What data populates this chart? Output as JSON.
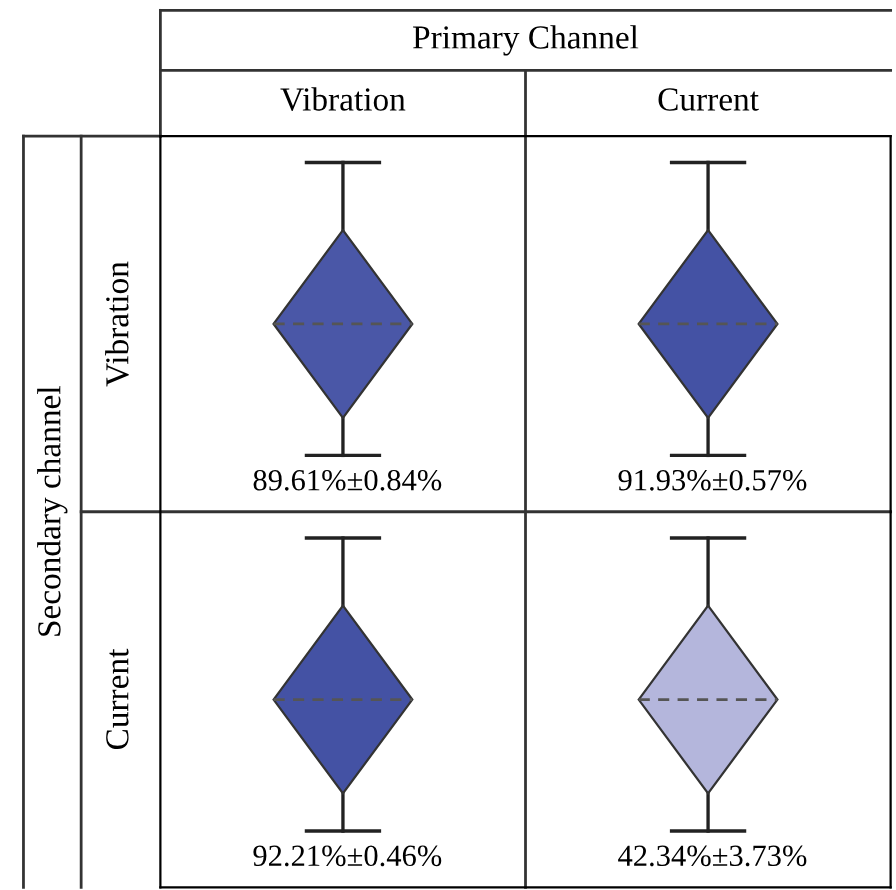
{
  "chart_data": {
    "type": "heatmap",
    "xlabel": "Primary Channel",
    "ylabel": "Secondary channel",
    "categories": [
      "Vibration",
      "Current"
    ],
    "y_categories": [
      "Vibration",
      "Current"
    ],
    "cells": [
      [
        89.61,
        91.93
      ],
      [
        92.21,
        42.34
      ]
    ],
    "cell_labels": [
      [
        "89.61%",
        "91.93%"
      ],
      [
        "92.21%",
        "42.34%"
      ]
    ],
    "annotations": [
      "±0.84%",
      "±0.57%",
      "±0.46%",
      "±3.73%"
    ]
  }
}
